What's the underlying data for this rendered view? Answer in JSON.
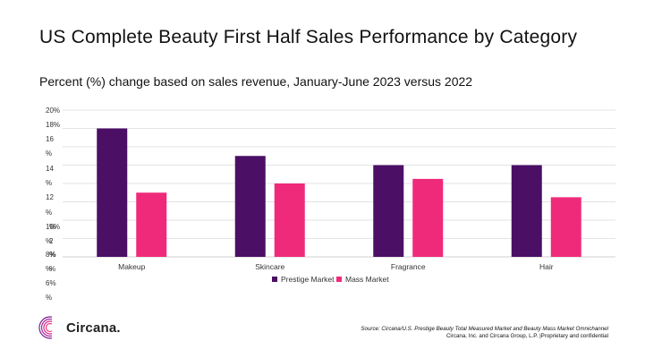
{
  "colors": {
    "prestige": "#4b0f66",
    "mass": "#ef2a7b",
    "grid": "#e3e3e3"
  },
  "chart_data": {
    "type": "bar",
    "title": "US Complete Beauty First Half Sales Performance by Category",
    "subtitle": "Percent (%) change based on sales revenue, January-June 2023 versus 2022",
    "categories": [
      "Makeup",
      "Skincare",
      "Fragrance",
      "Hair"
    ],
    "series": [
      {
        "name": "Prestige Market",
        "values": [
          18,
          15,
          14,
          14
        ]
      },
      {
        "name": "Mass Market",
        "values": [
          11,
          12,
          12.5,
          10.5
        ]
      }
    ],
    "y_tick_labels": [
      "20%",
      "18%",
      "16",
      "%",
      "14",
      "%",
      "12",
      "%",
      "10%",
      "%",
      "8%",
      "%",
      "6%",
      "%"
    ],
    "ylim": [
      4,
      20
    ],
    "xlabel": "",
    "ylabel": "",
    "grid": true,
    "legend": "bottom-center"
  },
  "logo": {
    "text": "Circana."
  },
  "source": {
    "line1": "Source: Circana/U.S. Prestige Beauty Total Measured Market and Beauty Mass Market Omnichannel",
    "line2": "Circana, Inc. and Circana Group, L.P. |Proprietary and confidential"
  }
}
